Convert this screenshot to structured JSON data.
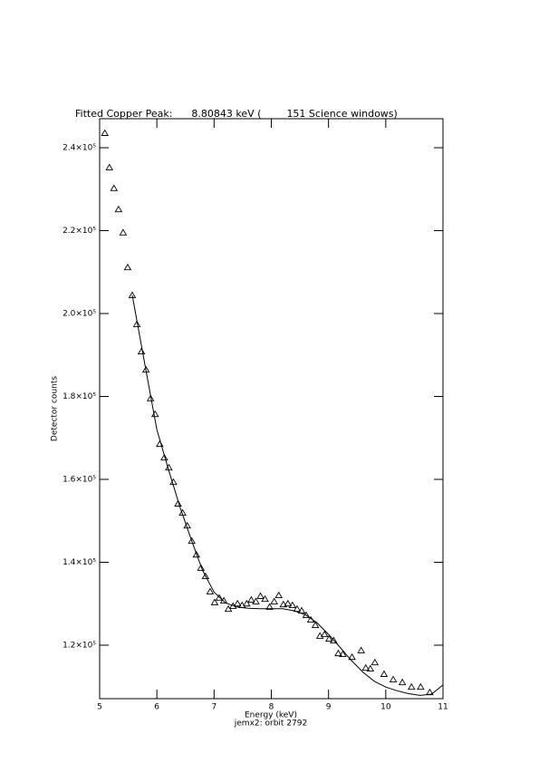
{
  "chart_data": {
    "type": "scatter",
    "title": "Fitted Copper Peak:      8.80843 keV (        151 Science windows)",
    "subtitle": "jemx2: orbit 2792",
    "x_label": "Energy (keV)",
    "y_label": "Detector counts",
    "xlim": [
      5,
      11
    ],
    "ylim": [
      107100,
      247000
    ],
    "xticks": [
      5,
      6,
      7,
      8,
      9,
      10,
      11
    ],
    "yticks": [
      {
        "value": 120000,
        "label": "1.2×10⁵"
      },
      {
        "value": 140000,
        "label": "1.4×10⁵"
      },
      {
        "value": 160000,
        "label": "1.6×10⁵"
      },
      {
        "value": 180000,
        "label": "1.8×10⁵"
      },
      {
        "value": 200000,
        "label": "2.0×10⁵"
      },
      {
        "value": 220000,
        "label": "2.2×10⁵"
      },
      {
        "value": 240000,
        "label": "2.4×10⁵"
      }
    ],
    "series": [
      {
        "mode": "markers",
        "marker": "triangle",
        "color": "#000000",
        "x": [
          5.09,
          5.17,
          5.25,
          5.33,
          5.41,
          5.49,
          5.57,
          5.65,
          5.73,
          5.81,
          5.89,
          5.97,
          6.05,
          6.13,
          6.21,
          6.29,
          6.37,
          6.45,
          6.53,
          6.61,
          6.69,
          6.77,
          6.85,
          6.93,
          7.01,
          7.09,
          7.17,
          7.25,
          7.33,
          7.41,
          7.49,
          7.57,
          7.65,
          7.73,
          7.81,
          7.89,
          7.97,
          8.05,
          8.13,
          8.21,
          8.29,
          8.37,
          8.45,
          8.53,
          8.61,
          8.69,
          8.77,
          8.85,
          8.93,
          9.01,
          9.09,
          9.17,
          9.25,
          9.41,
          9.57,
          9.65,
          9.73,
          9.81,
          9.97,
          10.13,
          10.29,
          10.45,
          10.61,
          10.77
        ],
        "values": [
          243500,
          235200,
          230200,
          225100,
          219500,
          211100,
          204400,
          197400,
          190800,
          186400,
          179500,
          175700,
          168500,
          165200,
          162800,
          159300,
          154100,
          151900,
          148800,
          145100,
          141800,
          138600,
          136600,
          132900,
          130300,
          131400,
          130700,
          128700,
          129400,
          130000,
          129600,
          130000,
          130900,
          130500,
          131800,
          131100,
          129200,
          130500,
          132000,
          129800,
          130000,
          129600,
          128700,
          128300,
          127200,
          126100,
          124800,
          122200,
          122600,
          121500,
          121100,
          118000,
          117800,
          117100,
          118700,
          114500,
          114300,
          115800,
          113000,
          111700,
          111000,
          109900,
          109900,
          108600
        ]
      },
      {
        "mode": "line",
        "color": "#000000",
        "x": [
          5.57,
          5.8,
          6.0,
          6.2,
          6.4,
          6.6,
          6.8,
          7.0,
          7.2,
          7.4,
          7.6,
          7.8,
          8.0,
          8.2,
          8.4,
          8.6,
          8.8,
          9.0,
          9.2,
          9.4,
          9.6,
          9.8,
          10.0,
          10.2,
          10.4,
          10.6,
          10.8,
          11.0
        ],
        "values": [
          204400,
          187000,
          172000,
          162500,
          153500,
          145500,
          138000,
          132800,
          130200,
          129200,
          128900,
          128800,
          128800,
          128800,
          128300,
          127300,
          125400,
          122600,
          119500,
          116300,
          113500,
          111300,
          109900,
          109000,
          108300,
          107900,
          108200,
          110400
        ]
      }
    ]
  }
}
